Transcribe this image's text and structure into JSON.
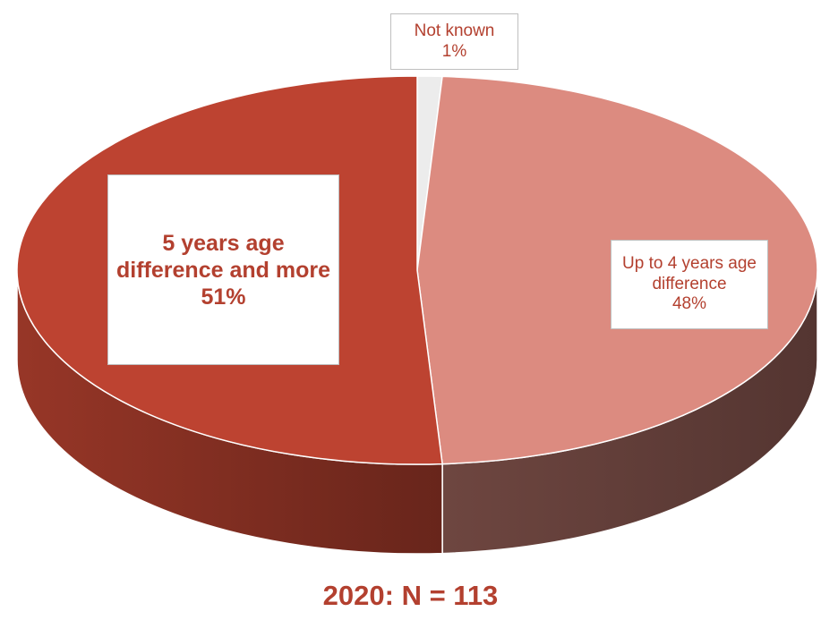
{
  "chart_data": {
    "type": "pie",
    "title": "2020: N = 113",
    "categories": [
      "Not known",
      "Up to 4 years age difference",
      "5 years age difference and more"
    ],
    "values": [
      1,
      48,
      51
    ],
    "value_labels": [
      "1%",
      "48%",
      "51%"
    ],
    "colors": [
      "#ececec",
      "#dc8b80",
      "#bd4331"
    ]
  }
}
